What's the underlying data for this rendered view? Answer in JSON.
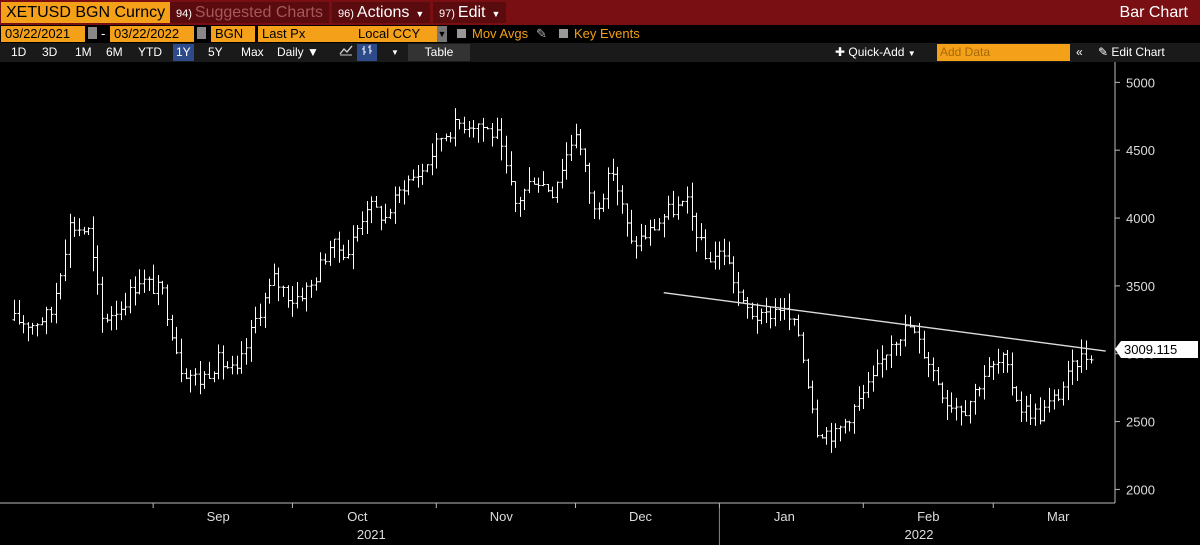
{
  "toolbar": {
    "ticker": "XETUSD BGN Curncy",
    "suggested_num": "94)",
    "suggested_label": "Suggested Charts",
    "actions_num": "96)",
    "actions_label": "Actions",
    "edit_num": "97)",
    "edit_label": "Edit",
    "chart_title": "Bar Chart"
  },
  "params": {
    "start_date": "03/22/2021",
    "end_date": "03/22/2022",
    "source": "BGN",
    "field": "Last Px",
    "currency": "Local CCY",
    "mov_avgs": "Mov Avgs",
    "key_events": "Key Events"
  },
  "ranges": {
    "items": [
      "1D",
      "3D",
      "1M",
      "6M",
      "YTD",
      "1Y",
      "5Y",
      "Max"
    ],
    "active": "1Y",
    "frequency": "Daily",
    "table": "Table",
    "quick_add": "Quick-Add",
    "add_data_placeholder": "Add Data",
    "edit_chart": "Edit Chart"
  },
  "colors": {
    "top_bar": "#7a0f13",
    "accent_orange": "#f4a018",
    "active_range": "#2d4a8a"
  },
  "chart_data": {
    "type": "ohlc-bar",
    "frequency": "Daily",
    "ylim": [
      1900,
      5150
    ],
    "yticks": [
      2000,
      2500,
      3000,
      3500,
      4000,
      4500,
      5000
    ],
    "x_month_labels": [
      "Sep",
      "Oct",
      "Nov",
      "Dec",
      "Jan",
      "Feb",
      "Mar"
    ],
    "x_year_labels": [
      "2021",
      "2022"
    ],
    "last_price_label": "3009.115",
    "last_price": 3009.115,
    "trendline": {
      "start": {
        "date": "2021-12-20",
        "value": 3450
      },
      "end": {
        "date": "2022-03-22",
        "value": 3020
      }
    },
    "approx_closes": [
      {
        "date": "2021-08-02",
        "value": 3250
      },
      {
        "date": "2021-08-06",
        "value": 3220
      },
      {
        "date": "2021-08-10",
        "value": 3300
      },
      {
        "date": "2021-08-14",
        "value": 3950
      },
      {
        "date": "2021-08-18",
        "value": 3900
      },
      {
        "date": "2021-08-21",
        "value": 3250
      },
      {
        "date": "2021-08-25",
        "value": 3350
      },
      {
        "date": "2021-08-29",
        "value": 3550
      },
      {
        "date": "2021-09-03",
        "value": 3450
      },
      {
        "date": "2021-09-07",
        "value": 2900
      },
      {
        "date": "2021-09-11",
        "value": 2800
      },
      {
        "date": "2021-09-15",
        "value": 2950
      },
      {
        "date": "2021-09-19",
        "value": 2850
      },
      {
        "date": "2021-09-23",
        "value": 3250
      },
      {
        "date": "2021-09-27",
        "value": 3550
      },
      {
        "date": "2021-10-01",
        "value": 3400
      },
      {
        "date": "2021-10-05",
        "value": 3500
      },
      {
        "date": "2021-10-09",
        "value": 3800
      },
      {
        "date": "2021-10-13",
        "value": 3750
      },
      {
        "date": "2021-10-17",
        "value": 4100
      },
      {
        "date": "2021-10-21",
        "value": 4000
      },
      {
        "date": "2021-10-25",
        "value": 4250
      },
      {
        "date": "2021-10-29",
        "value": 4350
      },
      {
        "date": "2021-11-02",
        "value": 4600
      },
      {
        "date": "2021-11-06",
        "value": 4700
      },
      {
        "date": "2021-11-10",
        "value": 4700
      },
      {
        "date": "2021-11-14",
        "value": 4600
      },
      {
        "date": "2021-11-18",
        "value": 4100
      },
      {
        "date": "2021-11-22",
        "value": 4300
      },
      {
        "date": "2021-11-26",
        "value": 4200
      },
      {
        "date": "2021-12-01",
        "value": 4650
      },
      {
        "date": "2021-12-05",
        "value": 4050
      },
      {
        "date": "2021-12-09",
        "value": 4350
      },
      {
        "date": "2021-12-13",
        "value": 3800
      },
      {
        "date": "2021-12-17",
        "value": 3900
      },
      {
        "date": "2021-12-21",
        "value": 4050
      },
      {
        "date": "2021-12-25",
        "value": 4100
      },
      {
        "date": "2021-12-29",
        "value": 3700
      },
      {
        "date": "2022-01-02",
        "value": 3750
      },
      {
        "date": "2022-01-06",
        "value": 3350
      },
      {
        "date": "2022-01-10",
        "value": 3250
      },
      {
        "date": "2022-01-14",
        "value": 3350
      },
      {
        "date": "2022-01-18",
        "value": 3150
      },
      {
        "date": "2022-01-22",
        "value": 2450
      },
      {
        "date": "2022-01-26",
        "value": 2400
      },
      {
        "date": "2022-01-30",
        "value": 2600
      },
      {
        "date": "2022-02-03",
        "value": 2800
      },
      {
        "date": "2022-02-07",
        "value": 3100
      },
      {
        "date": "2022-02-11",
        "value": 3200
      },
      {
        "date": "2022-02-15",
        "value": 2950
      },
      {
        "date": "2022-02-19",
        "value": 2650
      },
      {
        "date": "2022-02-23",
        "value": 2600
      },
      {
        "date": "2022-02-27",
        "value": 2850
      },
      {
        "date": "2022-03-03",
        "value": 2950
      },
      {
        "date": "2022-03-07",
        "value": 2600
      },
      {
        "date": "2022-03-11",
        "value": 2550
      },
      {
        "date": "2022-03-15",
        "value": 2700
      },
      {
        "date": "2022-03-19",
        "value": 2950
      },
      {
        "date": "2022-03-22",
        "value": 3009
      }
    ]
  }
}
